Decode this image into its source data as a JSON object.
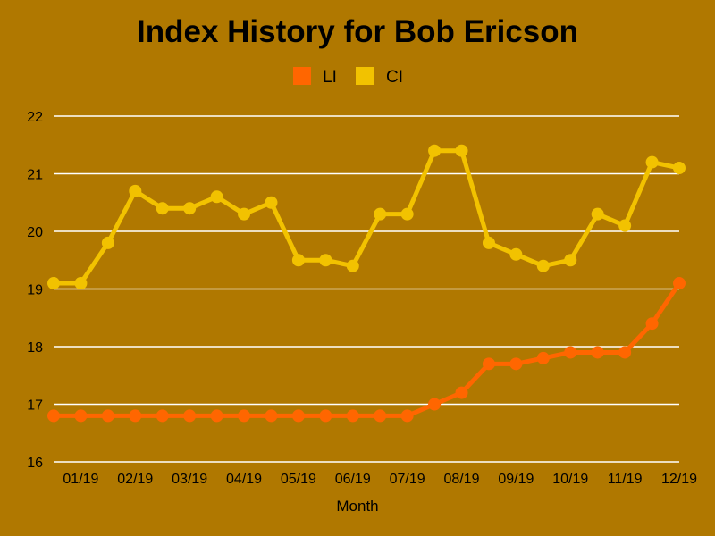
{
  "chart_data": {
    "type": "line",
    "title": "Index History for Bob Ericson",
    "xlabel": "Month",
    "ylabel": "",
    "ylim": [
      16,
      22
    ],
    "yticks": [
      "16",
      "17",
      "18",
      "19",
      "20",
      "21",
      "22"
    ],
    "grid": true,
    "legend_position": "top-center",
    "x_tick_labels": [
      "01/19",
      "02/19",
      "03/19",
      "04/19",
      "05/19",
      "06/19",
      "07/19",
      "08/19",
      "09/19",
      "10/19",
      "11/19",
      "12/19"
    ],
    "series": [
      {
        "name": "LI",
        "color": "#ff6600",
        "values": [
          16.8,
          16.8,
          16.8,
          16.8,
          16.8,
          16.8,
          16.8,
          16.8,
          16.8,
          16.8,
          16.8,
          16.8,
          16.8,
          16.8,
          17.0,
          17.2,
          17.7,
          17.7,
          17.8,
          17.9,
          17.9,
          17.9,
          18.4,
          19.1
        ]
      },
      {
        "name": "CI",
        "color": "#f2c200",
        "values": [
          19.1,
          19.1,
          19.8,
          20.7,
          20.4,
          20.4,
          20.6,
          20.3,
          20.5,
          19.5,
          19.5,
          19.4,
          20.3,
          20.3,
          21.4,
          21.4,
          19.8,
          19.6,
          19.4,
          19.5,
          20.3,
          20.1,
          21.2,
          21.1
        ]
      }
    ]
  }
}
